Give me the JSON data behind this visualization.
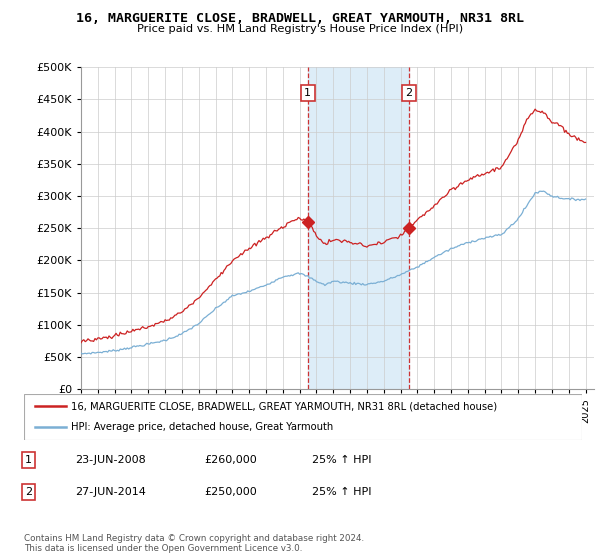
{
  "title": "16, MARGUERITE CLOSE, BRADWELL, GREAT YARMOUTH, NR31 8RL",
  "subtitle": "Price paid vs. HM Land Registry's House Price Index (HPI)",
  "ylabel_ticks": [
    "£0",
    "£50K",
    "£100K",
    "£150K",
    "£200K",
    "£250K",
    "£300K",
    "£350K",
    "£400K",
    "£450K",
    "£500K"
  ],
  "ytick_values": [
    0,
    50000,
    100000,
    150000,
    200000,
    250000,
    300000,
    350000,
    400000,
    450000,
    500000
  ],
  "ylim": [
    0,
    500000
  ],
  "xlim_start": 1995.0,
  "xlim_end": 2025.5,
  "xtick_years": [
    1995,
    1996,
    1997,
    1998,
    1999,
    2000,
    2001,
    2002,
    2003,
    2004,
    2005,
    2006,
    2007,
    2008,
    2009,
    2010,
    2011,
    2012,
    2013,
    2014,
    2015,
    2016,
    2017,
    2018,
    2019,
    2020,
    2021,
    2022,
    2023,
    2024,
    2025
  ],
  "hpi_color": "#7bafd4",
  "price_color": "#cc2222",
  "sale1_date": 2008.48,
  "sale1_price": 260000,
  "sale2_date": 2014.49,
  "sale2_price": 250000,
  "shade_color": "#d8eaf7",
  "vline_color": "#cc3333",
  "legend_label_price": "16, MARGUERITE CLOSE, BRADWELL, GREAT YARMOUTH, NR31 8RL (detached house)",
  "legend_label_hpi": "HPI: Average price, detached house, Great Yarmouth",
  "table_row1": [
    "1",
    "23-JUN-2008",
    "£260,000",
    "25% ↑ HPI"
  ],
  "table_row2": [
    "2",
    "27-JUN-2014",
    "£250,000",
    "25% ↑ HPI"
  ],
  "footnote": "Contains HM Land Registry data © Crown copyright and database right 2024.\nThis data is licensed under the Open Government Licence v3.0.",
  "background_color": "#ffffff",
  "grid_color": "#cccccc"
}
